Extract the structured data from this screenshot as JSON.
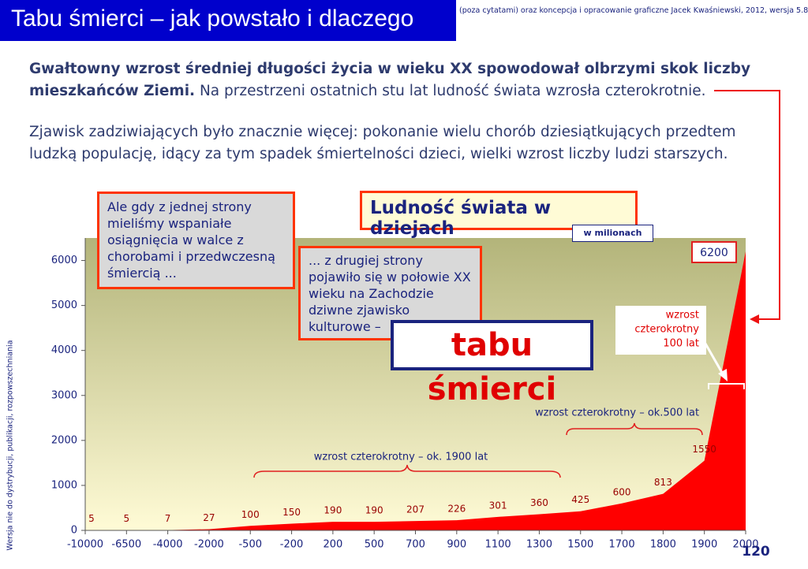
{
  "header": {
    "title": "Tabu śmierci – jak powstało i dlaczego",
    "credit": "(poza cytatami) oraz koncepcja i opracowanie graficzne Jacek Kwaśniewski, 2012,  wersja 5.8"
  },
  "intro": {
    "bold": "Gwałtowny wzrost średniej długości życia w wieku XX spowodował olbrzymi skok liczby mieszkańców Ziemi.",
    "rest": "Na przestrzeni ostatnich stu lat ludność świata wzrosła czterokrotnie.",
    "second": "Zjawisk zadziwiających było znacznie więcej: pokonanie wielu chorób dziesiątkujących przedtem ludzką populację, idący za tym spadek śmiertelności dzieci, wielki wzrost liczby ludzi starszych."
  },
  "chart_data": {
    "type": "area",
    "title": "Ludność świata w dziejach",
    "unit": "w milionach",
    "categories": [
      "-10000",
      "-6500",
      "-4000",
      "-2000",
      "-500",
      "-200",
      "200",
      "500",
      "700",
      "900",
      "1100",
      "1300",
      "1500",
      "1700",
      "1800",
      "1900",
      "2000"
    ],
    "values": [
      5,
      5,
      7,
      27,
      100,
      150,
      190,
      190,
      207,
      226,
      301,
      360,
      425,
      600,
      813,
      1550,
      6200
    ],
    "color": "#ff0000",
    "label_color": "#990000",
    "ylim": [
      0,
      6500
    ],
    "yticks": [
      0,
      1000,
      2000,
      3000,
      4000,
      5000,
      6000
    ],
    "annotations": {
      "first": "wzrost czterokrotny – ok. 1900 lat",
      "second": "wzrost czterokrotny – ok.500 lat",
      "third": [
        "wzrost",
        "czterokrotny",
        "100 lat"
      ]
    }
  },
  "callouts": {
    "left": "Ale gdy z jednej strony mieliśmy wspaniałe osiągnięcia w walce z chorobami i przedwczesną śmiercią ...",
    "middle": "... z drugiej strony pojawiło się w połowie XX wieku na Zachodzie dziwne zjawisko kulturowe –",
    "highlight": "tabu śmierci"
  },
  "side_note": "Wersja nie do dystrybucji, publikacji, rozpowszechniania",
  "page_number": "120"
}
